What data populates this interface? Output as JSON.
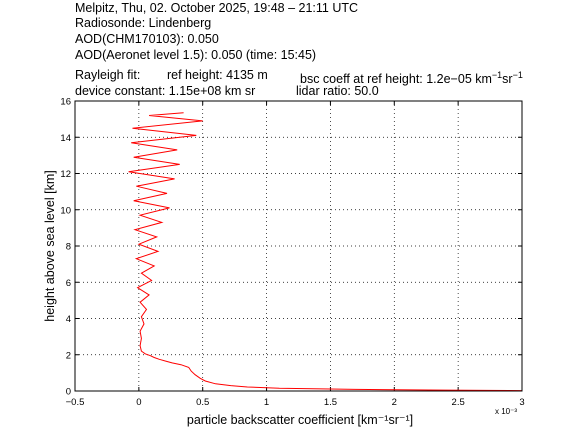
{
  "header": {
    "line1": "Melpitz, Thu, 02. October 2025, 19:48 – 21:11 UTC",
    "line2": "Radiosonde: Lindenberg",
    "line3": "AOD(CHM170103): 0.050",
    "line4": "AOD(Aeronet level 1.5): 0.050   (time: 15:45)",
    "rayleigh_fit": "Rayleigh fit:",
    "ref_height": "ref height: 4135 m",
    "bsc_coeff_prefix": "bsc coeff at ref height: 1.2e−05 km",
    "unit_km_exp": "−1",
    "unit_sr": "sr",
    "unit_sr_exp": "−1",
    "device_constant": "device constant: 1.15e+08 km sr",
    "lidar_ratio": "lidar ratio: 50.0"
  },
  "chart_data": {
    "type": "line",
    "xlabel": "particle backscatter coefficient [km⁻¹sr⁻¹]",
    "ylabel": "height above sea level [km]",
    "x_multiplier": "x 10⁻³",
    "xlim": [
      -0.0005,
      0.003
    ],
    "ylim": [
      0,
      16
    ],
    "xticks": [
      "−0.5",
      "0",
      "0.5",
      "1",
      "1.5",
      "2",
      "2.5",
      "3"
    ],
    "yticks": [
      "0",
      "2",
      "4",
      "6",
      "8",
      "10",
      "12",
      "14",
      "16"
    ],
    "grid": true,
    "series": [
      {
        "color": "#ff0000",
        "points": [
          [
            0.003,
            0.02
          ],
          [
            0.0024,
            0.05
          ],
          [
            0.0017,
            0.09
          ],
          [
            0.0011,
            0.15
          ],
          [
            0.00085,
            0.22
          ],
          [
            0.00072,
            0.3
          ],
          [
            0.0006,
            0.4
          ],
          [
            0.00052,
            0.55
          ],
          [
            0.00048,
            0.7
          ],
          [
            0.00044,
            0.9
          ],
          [
            0.00041,
            1.1
          ],
          [
            0.00039,
            1.3
          ],
          [
            0.00033,
            1.45
          ],
          [
            0.00026,
            1.55
          ],
          [
            0.00021,
            1.65
          ],
          [
            0.00016,
            1.75
          ],
          [
            0.00012,
            1.85
          ],
          [
            9e-05,
            1.95
          ],
          [
            5e-05,
            2.05
          ],
          [
            2e-05,
            2.2
          ],
          [
            1e-05,
            2.5
          ],
          [
            2e-05,
            2.9
          ],
          [
            1e-05,
            3.3
          ],
          [
            4e-05,
            3.7
          ],
          [
            2e-05,
            4.1
          ],
          [
            6e-05,
            4.5
          ],
          [
            1e-05,
            4.9
          ],
          [
            8e-05,
            5.3
          ],
          [
            -1e-05,
            5.7
          ],
          [
            0.0001,
            6.1
          ],
          [
            2e-05,
            6.5
          ],
          [
            0.00012,
            6.9
          ],
          [
            -2e-05,
            7.3
          ],
          [
            0.00015,
            7.7
          ],
          [
            0.0,
            8.1
          ],
          [
            0.00014,
            8.5
          ],
          [
            -3e-05,
            8.9
          ],
          [
            0.00018,
            9.3
          ],
          [
            1e-05,
            9.7
          ],
          [
            0.00024,
            10.1
          ],
          [
            -4e-05,
            10.5
          ],
          [
            0.00022,
            10.9
          ],
          [
            -2e-05,
            11.3
          ],
          [
            0.00028,
            11.7
          ],
          [
            -8e-05,
            12.1
          ],
          [
            0.00032,
            12.5
          ],
          [
            -4e-05,
            12.9
          ],
          [
            0.0003,
            13.3
          ],
          [
            -6e-05,
            13.7
          ],
          [
            0.00045,
            14.1
          ],
          [
            -5e-05,
            14.5
          ],
          [
            0.0005,
            14.9
          ],
          [
            8e-05,
            15.2
          ],
          [
            0.00035,
            15.35
          ]
        ]
      }
    ]
  }
}
